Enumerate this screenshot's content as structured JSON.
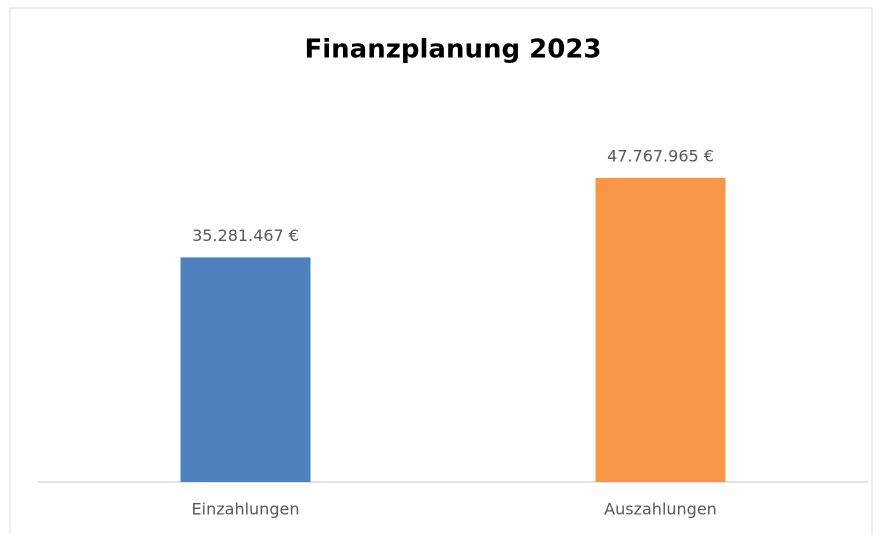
{
  "chart_data": {
    "type": "bar",
    "title": "Finanzplanung 2023",
    "categories": [
      "Einzahlungen",
      "Auszahlungen"
    ],
    "values": [
      35281467,
      47767965
    ],
    "value_labels": [
      "35.281.467 €",
      "47.767.965 €"
    ],
    "colors": [
      "#4f81bd",
      "#f79646"
    ],
    "ylim": [
      0,
      60000000
    ]
  }
}
